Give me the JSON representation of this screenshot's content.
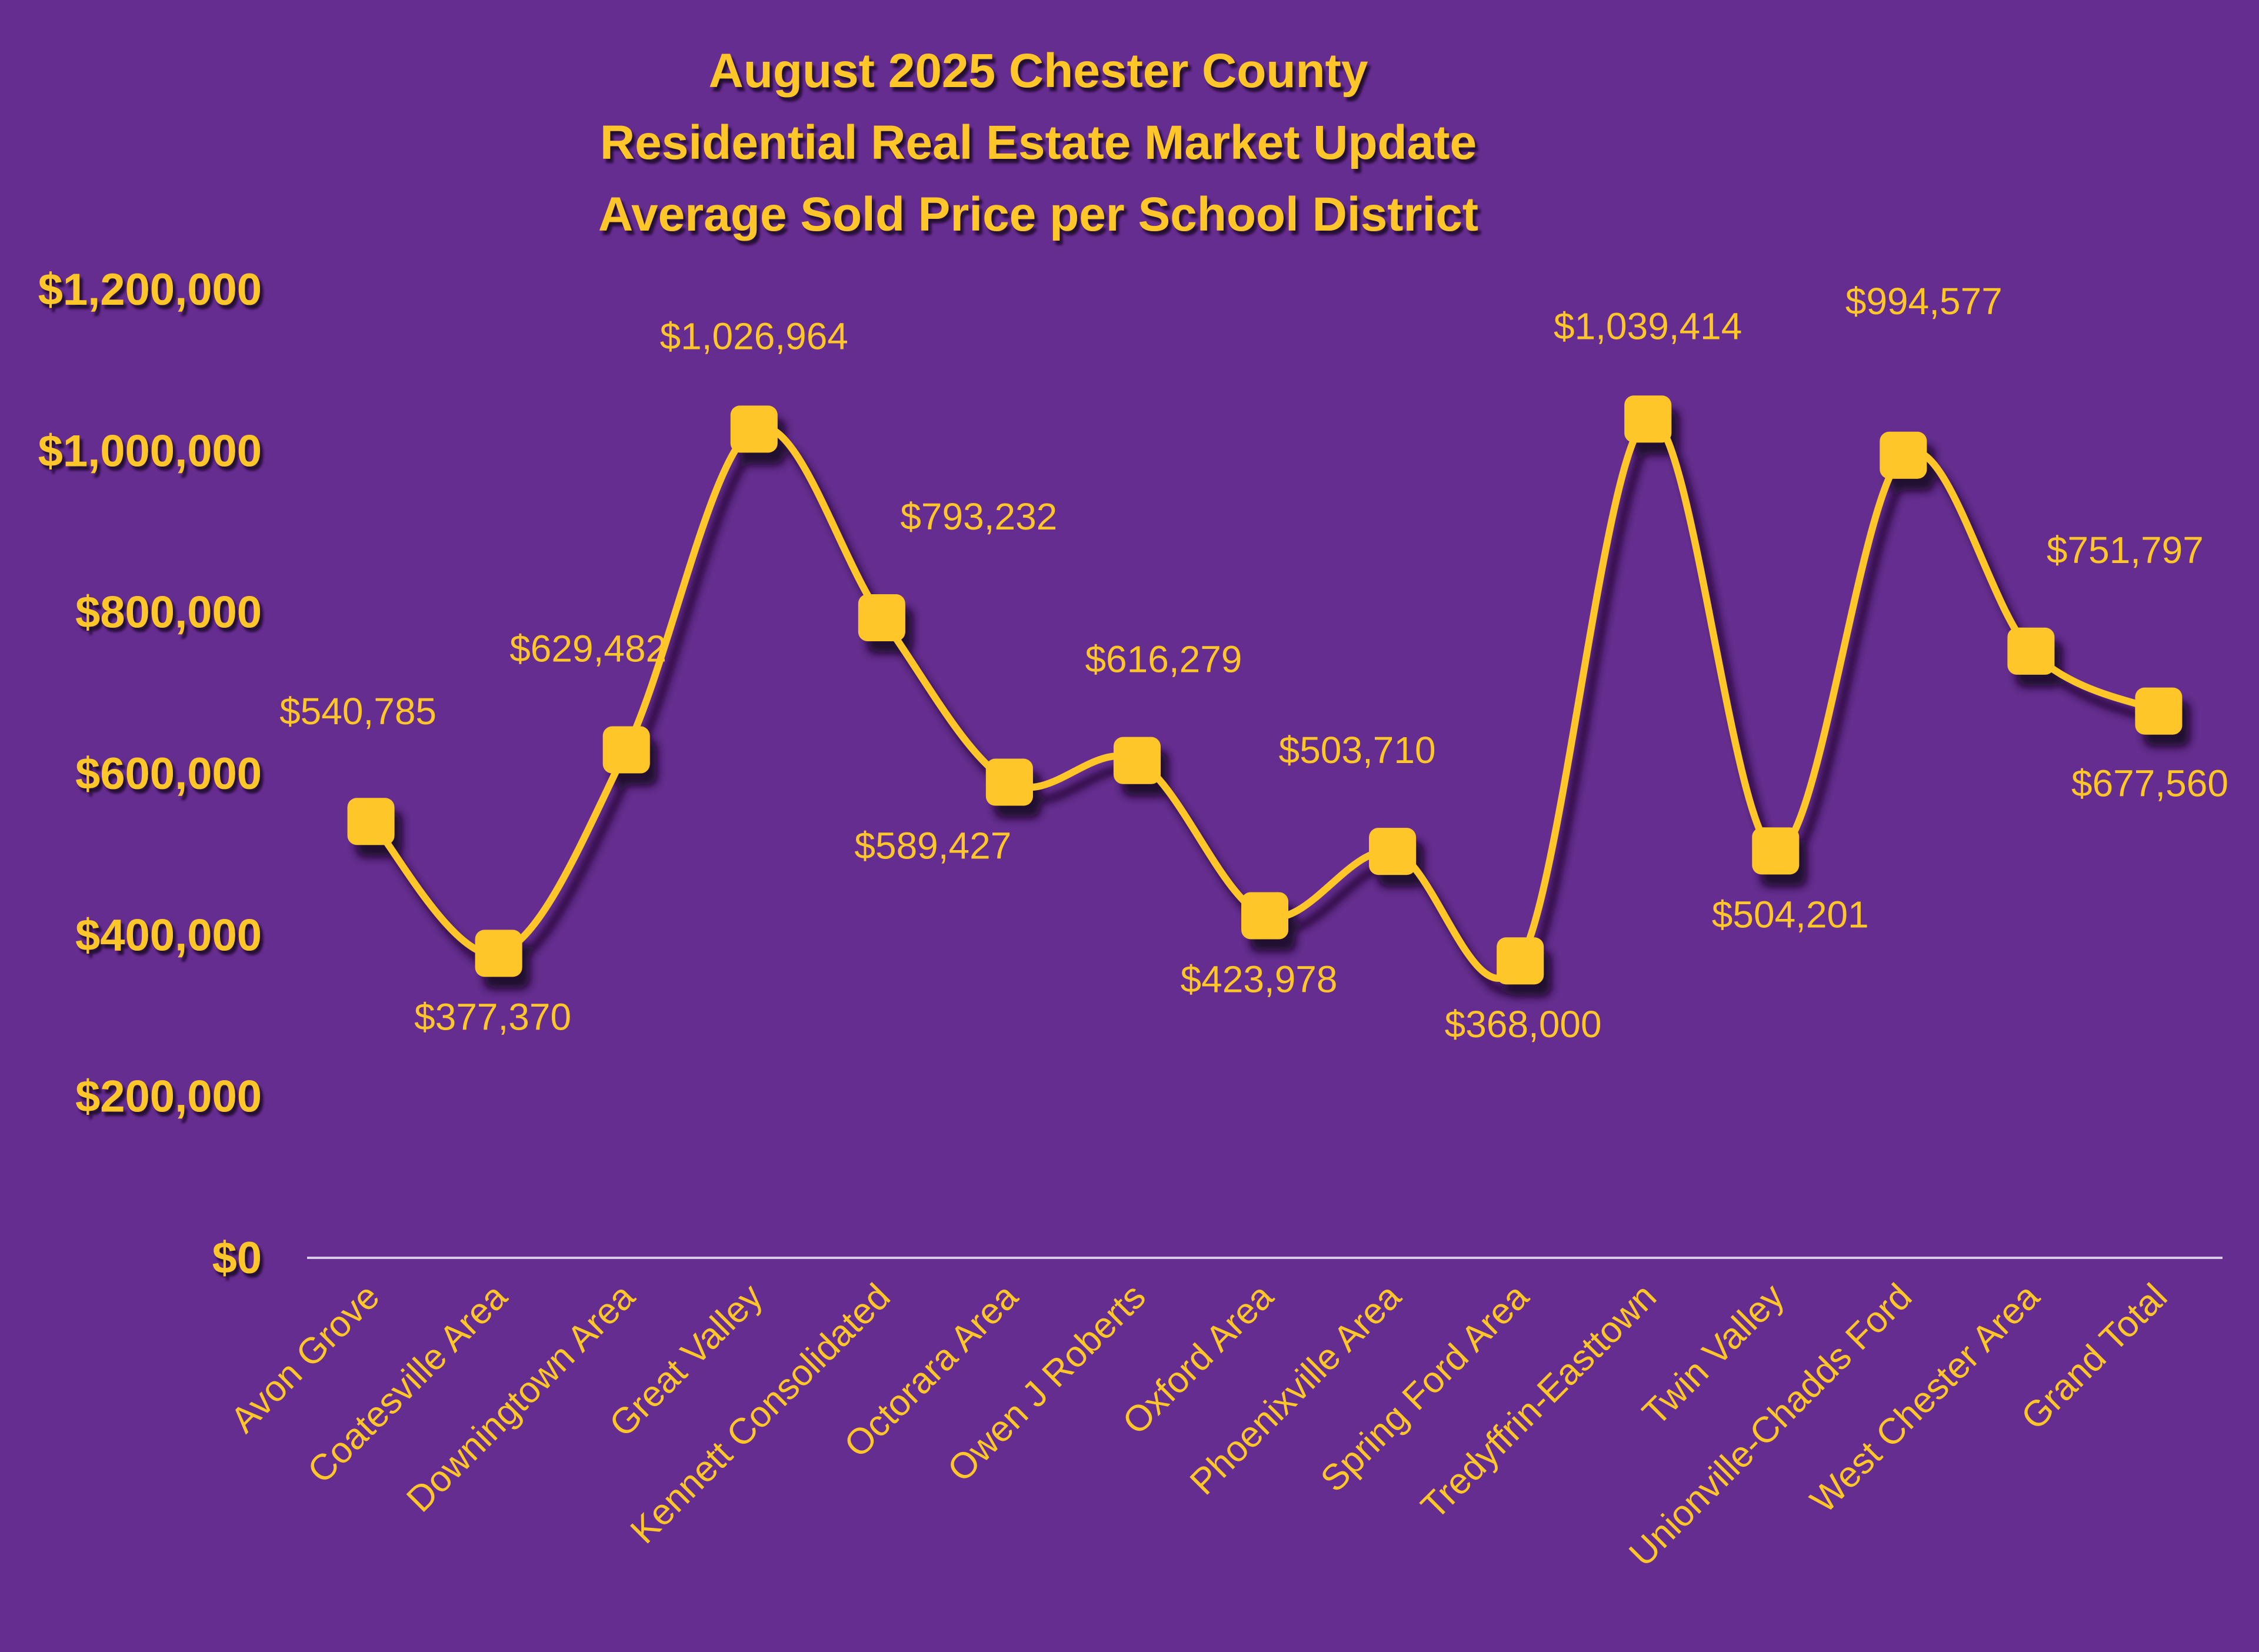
{
  "chart_data": {
    "type": "line",
    "title_lines": [
      "August 2025 Chester County",
      "Residential Real Estate Market Update",
      "Average Sold Price per School District"
    ],
    "categories": [
      "Avon Grove",
      "Coatesville Area",
      "Downingtown Area",
      "Great Valley",
      "Kennett Consolidated",
      "Octorara Area",
      "Owen J Roberts",
      "Oxford Area",
      "Phoenixville Area",
      "Spring Ford Area",
      "Tredyffrin-Easttown",
      "Twin Valley",
      "Unionville-Chadds Ford",
      "West Chester Area",
      "Grand Total"
    ],
    "series": [
      {
        "values": [
          540785,
          377370,
          629482,
          1026964,
          793232,
          589427,
          616279,
          423978,
          503710,
          368000,
          1039414,
          504201,
          994577,
          751797,
          677560
        ],
        "labels": [
          "$540,785",
          "$377,370",
          "$629,482",
          "$1,026,964",
          "$793,232",
          "$589,427",
          "$616,279",
          "$423,978",
          "$503,710",
          "$368,000",
          "$1,039,414",
          "$504,201",
          "$994,577",
          "$751,797",
          "$677,560"
        ],
        "label_side": [
          "above",
          "below",
          "above",
          "above",
          "above",
          "below",
          "above",
          "below",
          "above",
          "below",
          "above",
          "below",
          "above",
          "above",
          "below"
        ]
      }
    ],
    "yticks": [
      0,
      200000,
      400000,
      600000,
      800000,
      1000000,
      1200000
    ],
    "ytick_labels": [
      "$0",
      "$200,000",
      "$400,000",
      "$600,000",
      "$800,000",
      "$1,000,000",
      "$1,200,000"
    ],
    "ylim": [
      0,
      1200000
    ],
    "grid": false,
    "legend": "none",
    "smooth": true,
    "marker": "rounded-square",
    "colors": {
      "background": "#652d8f",
      "line": "#ffc62a",
      "marker": "#ffc62a",
      "text": "#ffc62a",
      "axis": "#d9cce6",
      "shadow": "#1e0a2c"
    }
  }
}
